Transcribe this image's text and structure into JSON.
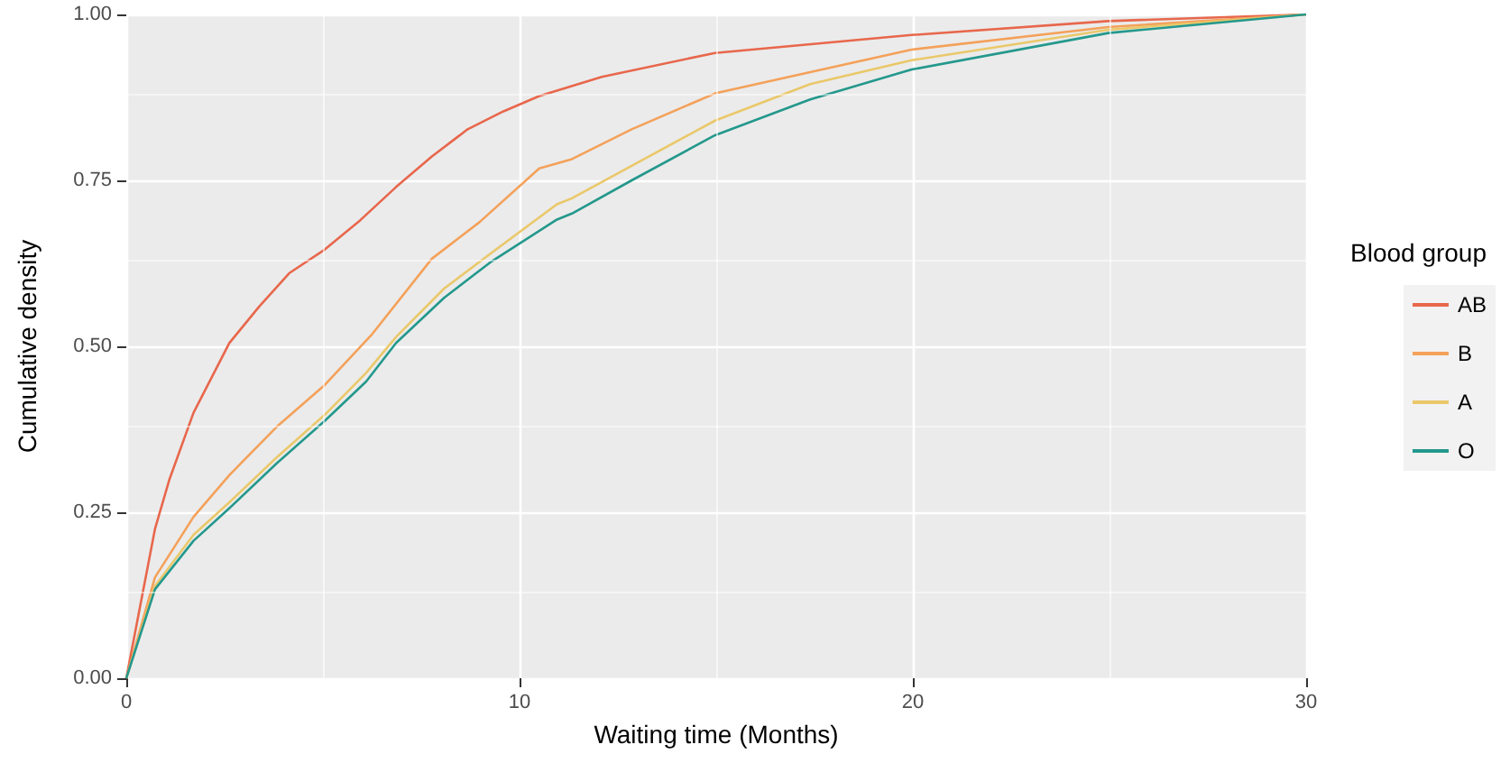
{
  "chart_data": {
    "type": "line",
    "xlabel": "Waiting time (Months)",
    "ylabel": "Cumulative density",
    "legend_title": "Blood group",
    "xlim": [
      0,
      30
    ],
    "xticks": [
      0,
      10,
      20,
      30
    ],
    "ylim": [
      0,
      1
    ],
    "yticks": [
      {
        "value": 0,
        "label": "0.00"
      },
      {
        "value": 0.25,
        "label": "0.25"
      },
      {
        "value": 0.5,
        "label": "0.50"
      },
      {
        "value": 0.75,
        "label": "0.75"
      },
      {
        "value": 1,
        "label": "1.00"
      }
    ],
    "grid": true,
    "legend": "right",
    "marker": "none",
    "line_style": "solid",
    "series": [
      {
        "name": "AB",
        "color": "#e8674c",
        "x": [
          0,
          0.73,
          1.1,
          1.71,
          2.62,
          3.38,
          4.14,
          5.05,
          5.95,
          6.86,
          7.77,
          8.68,
          9.59,
          10.5,
          12.09,
          14.97,
          19.97,
          24.97,
          30
        ],
        "values": [
          0,
          0.225,
          0.3,
          0.4,
          0.505,
          0.56,
          0.61,
          0.646,
          0.69,
          0.74,
          0.786,
          0.827,
          0.854,
          0.877,
          0.906,
          0.942,
          0.969,
          0.99,
          1
        ]
      },
      {
        "name": "B",
        "color": "#f4a15a",
        "x": [
          0,
          0.73,
          1.71,
          2.62,
          3.83,
          5.05,
          6.26,
          7.77,
          8.98,
          10.5,
          11.33,
          12.85,
          14.97,
          17.39,
          19.97,
          24.97,
          30
        ],
        "values": [
          0,
          0.152,
          0.243,
          0.306,
          0.379,
          0.442,
          0.519,
          0.632,
          0.687,
          0.768,
          0.782,
          0.827,
          0.881,
          0.913,
          0.947,
          0.981,
          1
        ]
      },
      {
        "name": "A",
        "color": "#eac86a",
        "x": [
          0,
          0.73,
          1.71,
          2.62,
          3.83,
          5.05,
          6.1,
          6.86,
          8.08,
          9.29,
          10.95,
          11.33,
          12.85,
          14.97,
          17.39,
          19.97,
          24.97,
          30
        ],
        "values": [
          0,
          0.139,
          0.216,
          0.265,
          0.333,
          0.397,
          0.46,
          0.514,
          0.587,
          0.641,
          0.714,
          0.723,
          0.772,
          0.84,
          0.895,
          0.931,
          0.977,
          1
        ]
      },
      {
        "name": "O",
        "color": "#24988c",
        "x": [
          0,
          0.73,
          1.71,
          2.62,
          3.83,
          5.05,
          6.1,
          6.86,
          8.08,
          9.29,
          10.95,
          11.33,
          12.85,
          14.97,
          17.39,
          19.97,
          24.97,
          30
        ],
        "values": [
          0,
          0.134,
          0.207,
          0.256,
          0.324,
          0.388,
          0.447,
          0.505,
          0.573,
          0.628,
          0.691,
          0.7,
          0.75,
          0.818,
          0.872,
          0.917,
          0.972,
          1
        ]
      }
    ]
  }
}
